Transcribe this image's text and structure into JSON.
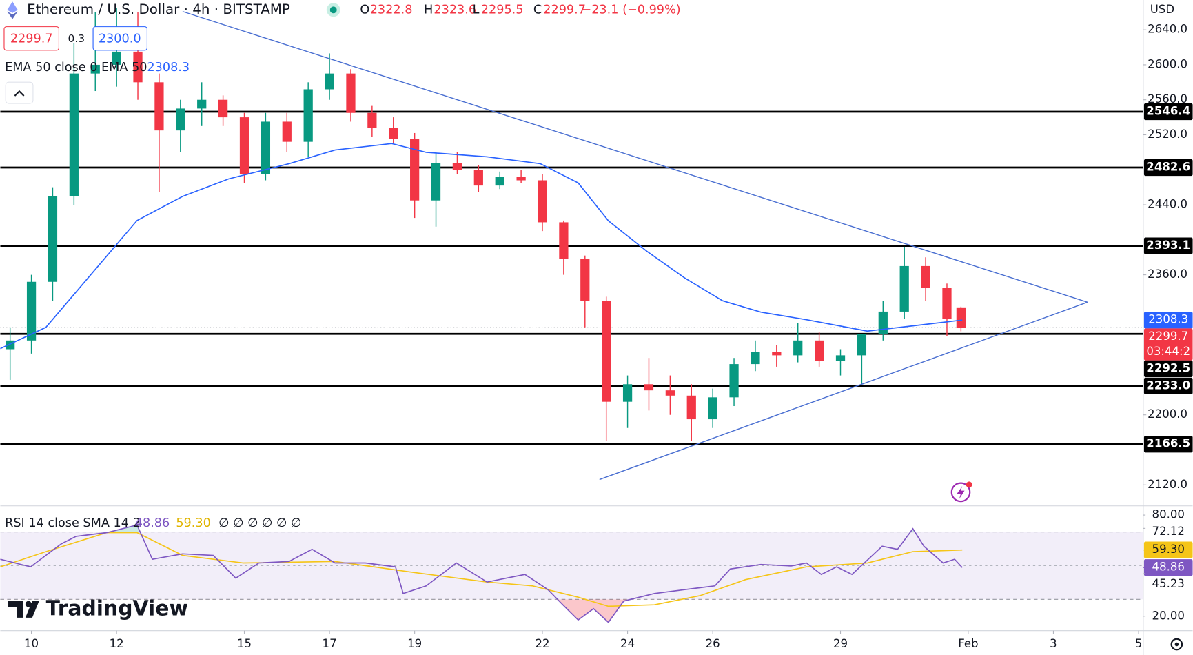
{
  "header": {
    "ohlc_keys": [
      "O",
      "H",
      "L",
      "C"
    ],
    "change": "−23.1 (−0.99%)",
    "spread": "0.3",
    "ask": "2300.0",
    "currency": "USD",
    "countdown": "03:44:2",
    "watermark": "TradingView"
  },
  "chart_data": [
    {
      "type": "candlestick",
      "title": "Ethereum / U.S. Dollar · 4h · BITSTAMP",
      "x": [
        9.5,
        10,
        10.5,
        11,
        11.5,
        12,
        12.5,
        13,
        13.5,
        14,
        14.5,
        15,
        15.5,
        16,
        16.5,
        17,
        17.5,
        18,
        18.5,
        19,
        19.5,
        20,
        20.5,
        21,
        21.5,
        22,
        22.5,
        23,
        23.5,
        24,
        24.5,
        25,
        25.5,
        26,
        26.5,
        27,
        27.5,
        28,
        28.5,
        29,
        29.5,
        30,
        30.5,
        31,
        31.5,
        31.83
      ],
      "open": [
        2275,
        2285,
        2352,
        2450,
        2590,
        2600,
        2615,
        2580,
        2525,
        2550,
        2560,
        2540,
        2475,
        2535,
        2512,
        2572,
        2590,
        2545,
        2528,
        2515,
        2445,
        2488,
        2480,
        2462,
        2472,
        2468,
        2420,
        2378,
        2330,
        2215,
        2235,
        2228,
        2222,
        2195,
        2220,
        2258,
        2272,
        2268,
        2285,
        2262,
        2268,
        2292,
        2318,
        2370,
        2345,
        2322.8
      ],
      "high": [
        2300,
        2360,
        2460,
        2625,
        2660,
        2665,
        2660,
        2590,
        2560,
        2580,
        2565,
        2545,
        2545,
        2545,
        2580,
        2613,
        2595,
        2553,
        2540,
        2522,
        2500,
        2500,
        2485,
        2478,
        2480,
        2475,
        2422,
        2382,
        2335,
        2245,
        2265,
        2245,
        2235,
        2230,
        2265,
        2285,
        2280,
        2305,
        2295,
        2275,
        2290,
        2330,
        2392,
        2380,
        2350,
        2323.6
      ],
      "low": [
        2240,
        2270,
        2330,
        2440,
        2570,
        2575,
        2560,
        2455,
        2500,
        2530,
        2530,
        2465,
        2468,
        2500,
        2495,
        2560,
        2535,
        2518,
        2510,
        2425,
        2415,
        2475,
        2455,
        2458,
        2465,
        2410,
        2360,
        2300,
        2170,
        2185,
        2205,
        2200,
        2170,
        2185,
        2210,
        2250,
        2255,
        2260,
        2255,
        2245,
        2235,
        2285,
        2310,
        2330,
        2290,
        2295.5
      ],
      "close": [
        2285,
        2352,
        2450,
        2590,
        2600,
        2615,
        2580,
        2525,
        2550,
        2560,
        2540,
        2475,
        2535,
        2512,
        2572,
        2590,
        2545,
        2528,
        2515,
        2445,
        2488,
        2480,
        2462,
        2472,
        2468,
        2420,
        2378,
        2330,
        2215,
        2235,
        2228,
        2222,
        2195,
        2220,
        2258,
        2272,
        2268,
        2285,
        2262,
        2268,
        2292,
        2318,
        2370,
        2345,
        2310,
        2299.7
      ],
      "up_color": "#089981",
      "down_color": "#f23645",
      "xlim": [
        9.27,
        36.11
      ],
      "xticks": [
        10,
        12,
        15,
        17,
        19,
        22,
        24,
        26,
        29,
        {
          "value": 32,
          "label": "Feb"
        },
        {
          "value": 34,
          "label": "3"
        },
        {
          "value": 36,
          "label": "5"
        }
      ],
      "ylim": [
        2096,
        2674
      ],
      "yticks": [
        {
          "value": 2120,
          "label": "2120.0"
        },
        {
          "value": 2200,
          "label": "2200.0"
        },
        {
          "value": 2360,
          "label": "2360.0"
        },
        {
          "value": 2440,
          "label": "2440.0"
        },
        {
          "value": 2520,
          "label": "2520.0"
        },
        {
          "value": 2560,
          "label": "2560.0"
        },
        {
          "value": 2600,
          "label": "2600.0"
        },
        {
          "value": 2640,
          "label": "2640.0"
        }
      ],
      "grid": false,
      "levels": [
        2546.4,
        2482.6,
        2393.1,
        2292.5,
        {
          "value": 2233,
          "label": "2233.0"
        },
        2166.5
      ],
      "level_color": "#000000",
      "ema": {
        "name": "EMA 50 close 0 EMA 50",
        "color": "#2962ff",
        "x": [
          9.27,
          10.34,
          11.41,
          12.48,
          13.55,
          14.63,
          16.05,
          17.13,
          18.46,
          19.27,
          20.7,
          21.95,
          22.84,
          23.55,
          24.45,
          25.34,
          26.23,
          27.13,
          28.2,
          29.63,
          30.7,
          31.86
        ],
        "values": [
          2275.7,
          2300,
          2361,
          2422,
          2449.6,
          2469.6,
          2487,
          2502.6,
          2510,
          2500,
          2494.8,
          2487,
          2465,
          2421.7,
          2387,
          2356.5,
          2330.4,
          2317.4,
          2308.7,
          2295.7,
          2301.7,
          2308.3
        ]
      },
      "trendlines": [
        {
          "x": [
            13.55,
            34.8
          ],
          "values": [
            2660.9,
            2328.7
          ]
        },
        {
          "x": [
            23.34,
            34.8
          ],
          "values": [
            2126.1,
            2328.7
          ]
        }
      ],
      "trendline_color": "#4a6fd1"
    },
    {
      "type": "line",
      "title": "RSI 14 close SMA 14 2",
      "series": [
        {
          "color": "#7e57c2",
          "x": [
            9.27,
            9.98,
            10.7,
            11.05,
            11.77,
            12.48,
            12.84,
            13.55,
            14.27,
            14.8,
            15.34,
            16.05,
            16.59,
            17.13,
            17.84,
            18.55,
            18.73,
            19.27,
            19.98,
            20.7,
            21.59,
            22.13,
            22.48,
            22.84,
            23.2,
            23.55,
            23.91,
            24.63,
            25.34,
            26.05,
            26.41,
            27.13,
            27.84,
            28.2,
            28.55,
            28.91,
            29.27,
            29.98,
            30.34,
            30.7,
            30.96,
            31.41,
            31.68,
            31.86
          ],
          "values": [
            53.8,
            49.3,
            62.9,
            67.4,
            69.6,
            74.1,
            53.8,
            57,
            56.1,
            42.6,
            51.6,
            52.5,
            59.7,
            51.6,
            51.6,
            49.3,
            33.5,
            38,
            51.6,
            40.3,
            44.8,
            35.8,
            26.8,
            17.8,
            24.5,
            16.4,
            29,
            33.5,
            35.8,
            38,
            48,
            50.7,
            49.8,
            51.6,
            44.8,
            49.3,
            44.8,
            61.5,
            59.7,
            71.9,
            61.5,
            51.6,
            53.8,
            48.86
          ]
        },
        {
          "color": "#f5c518",
          "x": [
            9.27,
            10.34,
            11.77,
            12.48,
            13.55,
            14.98,
            17.13,
            18.91,
            20.7,
            21.77,
            22.84,
            23.55,
            24.63,
            25.7,
            26.77,
            28.2,
            29.63,
            30.7,
            31.86
          ],
          "values": [
            49.3,
            58.3,
            69.6,
            69.6,
            56.1,
            51.6,
            52.5,
            46.2,
            40.3,
            38,
            31.3,
            25.9,
            26.8,
            32.2,
            41.7,
            49.3,
            51.6,
            58.3,
            59.3
          ],
          "value_labels": [
            null,
            null,
            null,
            null,
            null,
            null,
            null,
            null,
            null,
            null,
            null,
            null,
            null,
            null,
            null,
            null,
            null,
            null,
            "59.30"
          ]
        }
      ],
      "ylim": [
        11.9,
        84.1
      ],
      "yticks": [
        {
          "value": 20,
          "label": "20.00"
        },
        {
          "value": 45.23,
          "label": "45.23"
        },
        {
          "value": 72.12,
          "label": "72.12"
        },
        {
          "value": 80,
          "label": "80.00"
        }
      ],
      "bands": [
        30,
        70
      ],
      "midline": 50,
      "band_color": "rgba(126,87,194,0.1)",
      "oversold_color": "rgba(242,54,69,0.28)",
      "overbought_color": "rgba(8,153,129,0.22)",
      "extra": "∅ ∅ ∅ ∅ ∅ ∅"
    }
  ]
}
